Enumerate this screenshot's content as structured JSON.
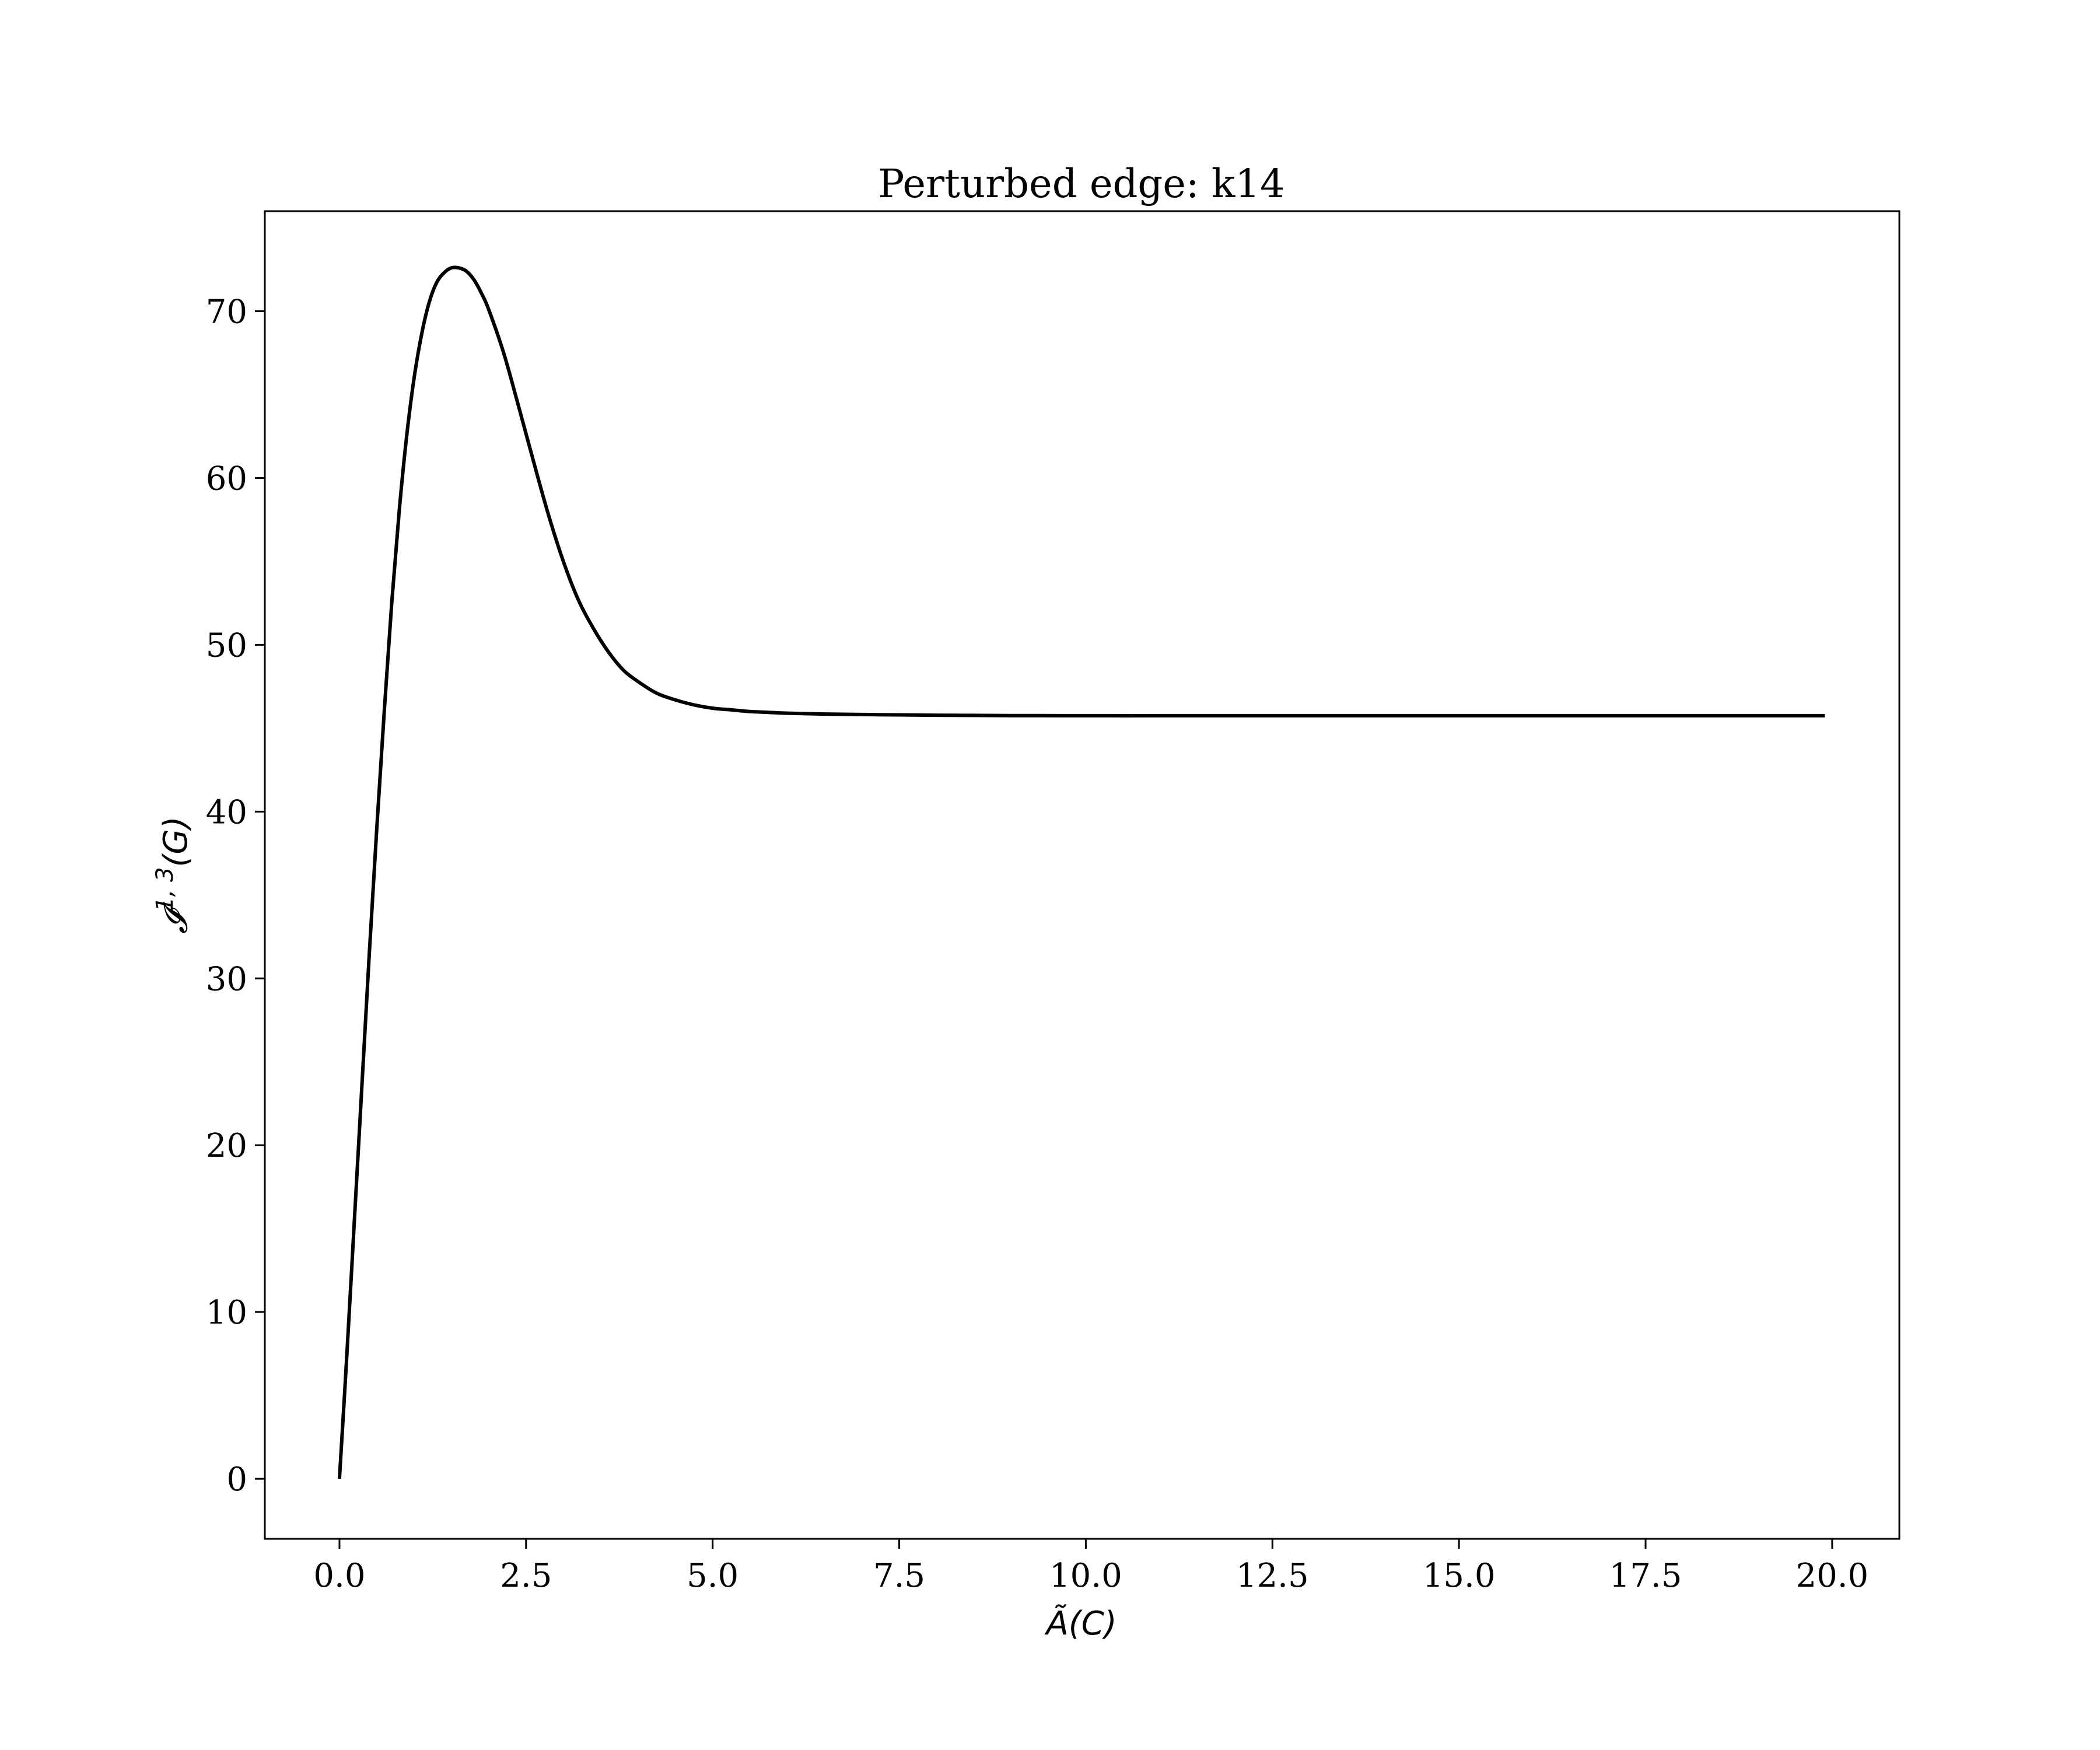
{
  "chart_data": {
    "type": "line",
    "title": "Perturbed edge: k14",
    "xlabel": "Ã(C)",
    "ylabel_main": "𝓘",
    "ylabel_sup": "1, 3",
    "ylabel_tail": "(G)",
    "xlim": [
      -1.0,
      20.9
    ],
    "ylim": [
      -3.6,
      76.0
    ],
    "xticks": [
      0.0,
      2.5,
      5.0,
      7.5,
      10.0,
      12.5,
      15.0,
      17.5,
      20.0
    ],
    "xtick_labels": [
      "0.0",
      "2.5",
      "5.0",
      "7.5",
      "10.0",
      "12.5",
      "15.0",
      "17.5",
      "20.0"
    ],
    "yticks": [
      0,
      10,
      20,
      30,
      40,
      50,
      60,
      70
    ],
    "ytick_labels": [
      "0",
      "10",
      "20",
      "30",
      "40",
      "50",
      "60",
      "70"
    ],
    "grid": false,
    "legend": "none",
    "series": [
      {
        "color": "#000000",
        "x": [
          0.0,
          0.1,
          0.2,
          0.3,
          0.4,
          0.5,
          0.6,
          0.7,
          0.8,
          0.9,
          1.0,
          1.1,
          1.2,
          1.3,
          1.4,
          1.5,
          1.6,
          1.7,
          1.8,
          1.9,
          2.0,
          2.2,
          2.4,
          2.6,
          2.8,
          3.0,
          3.2,
          3.4,
          3.6,
          3.8,
          4.0,
          4.25,
          4.5,
          4.75,
          5.0,
          5.25,
          5.5,
          5.75,
          6.0,
          6.5,
          7.0,
          7.5,
          8.0,
          8.5,
          9.0,
          10.0,
          11.0,
          12.0,
          13.0,
          14.0,
          15.0,
          16.0,
          17.0,
          18.0,
          19.0,
          19.9
        ],
        "y": [
          0.0,
          7.5,
          15.5,
          23.5,
          31.5,
          39.0,
          46.0,
          52.5,
          58.0,
          62.5,
          66.0,
          68.6,
          70.5,
          71.7,
          72.3,
          72.6,
          72.6,
          72.4,
          71.9,
          71.1,
          70.1,
          67.5,
          64.3,
          61.0,
          57.8,
          55.0,
          52.7,
          51.0,
          49.6,
          48.5,
          47.8,
          47.1,
          46.7,
          46.4,
          46.2,
          46.1,
          46.0,
          45.95,
          45.9,
          45.85,
          45.82,
          45.8,
          45.78,
          45.77,
          45.76,
          45.75,
          45.75,
          45.75,
          45.75,
          45.75,
          45.75,
          45.75,
          45.75,
          45.75,
          45.75,
          45.75
        ]
      }
    ]
  }
}
